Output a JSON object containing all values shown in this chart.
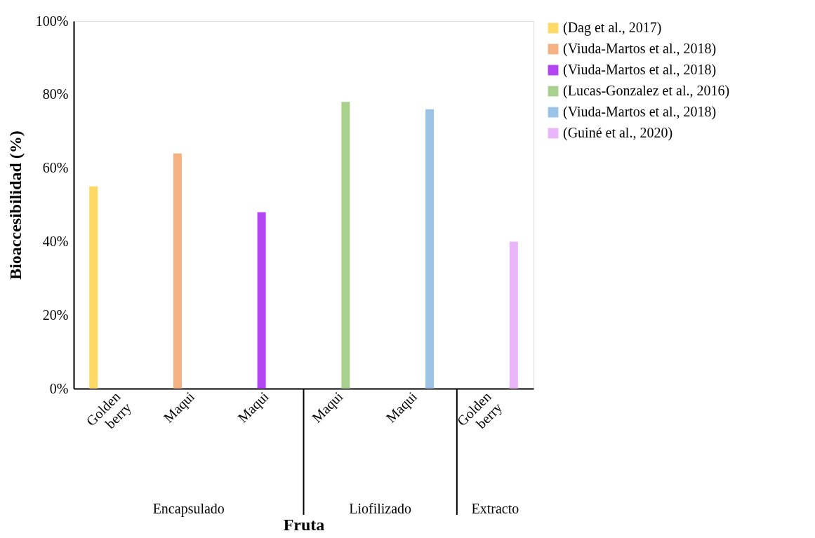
{
  "chart_data": {
    "type": "bar",
    "categories": [
      "Golden berry",
      "Maqui",
      "Maqui",
      "Maqui",
      "Maqui",
      "Golden berry"
    ],
    "series": [
      {
        "name": "(Dag et al., 2017)",
        "color": "#ffd966",
        "values": [
          55,
          null,
          null,
          null,
          null,
          null
        ]
      },
      {
        "name": "(Viuda-Martos et al., 2018)",
        "color": "#f4b183",
        "values": [
          null,
          64,
          null,
          null,
          null,
          null
        ]
      },
      {
        "name": "(Viuda-Martos et al., 2018)",
        "color": "#b146f2",
        "values": [
          null,
          null,
          48,
          null,
          null,
          null
        ]
      },
      {
        "name": "(Lucas-Gonzalez et al., 2016)",
        "color": "#a9d18e",
        "values": [
          null,
          null,
          null,
          78,
          null,
          null
        ]
      },
      {
        "name": "(Viuda-Martos et al., 2018)",
        "color": "#9dc3e6",
        "values": [
          null,
          null,
          null,
          null,
          76,
          null
        ]
      },
      {
        "name": "(Guiné et al., 2020)",
        "color": "#ebb5f9",
        "values": [
          null,
          null,
          null,
          null,
          null,
          40
        ]
      }
    ],
    "ylim": [
      0,
      100
    ],
    "yticks": [
      {
        "value": 0,
        "label": "0%"
      },
      {
        "value": 20,
        "label": "20%"
      },
      {
        "value": 40,
        "label": "40%"
      },
      {
        "value": 60,
        "label": "60%"
      },
      {
        "value": 80,
        "label": "80%"
      },
      {
        "value": 100,
        "label": "100%"
      }
    ],
    "xlabel": "Fruta",
    "ylabel": "Bioaccesibilidad (%)",
    "annotations": [
      "Encapsulado",
      "Liofilizado",
      "Extracto"
    ],
    "grid": false,
    "legend": "right"
  }
}
